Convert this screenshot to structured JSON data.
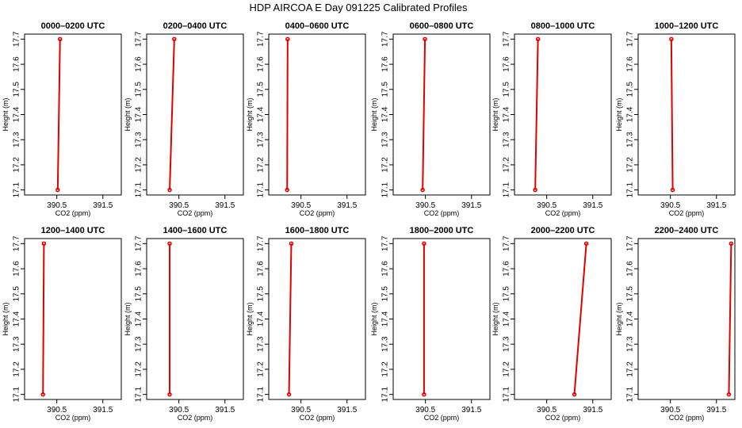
{
  "title": "HDP AIRCOA E  Day 091225  Calibrated Profiles",
  "chart_data": {
    "type": "line",
    "xlabel": "CO2 (ppm)",
    "ylabel": "Height (m)",
    "xlim": [
      389.8,
      391.9
    ],
    "ylim": [
      17.08,
      17.72
    ],
    "x_ticks": [
      390.5,
      391.5
    ],
    "x_tick_labels": [
      "390.5",
      "391.5"
    ],
    "y_ticks": [
      17.1,
      17.2,
      17.3,
      17.4,
      17.5,
      17.6,
      17.7
    ],
    "y_tick_labels": [
      "17.1",
      "17.2",
      "17.3",
      "17.4",
      "17.5",
      "17.6",
      "17.7"
    ],
    "line_color": "#e00000",
    "panels": [
      {
        "title": "0000–0200 UTC",
        "points": [
          {
            "x": 390.52,
            "y": 17.1
          },
          {
            "x": 390.57,
            "y": 17.7
          }
        ]
      },
      {
        "title": "0200–0400 UTC",
        "points": [
          {
            "x": 390.3,
            "y": 17.1
          },
          {
            "x": 390.4,
            "y": 17.7
          }
        ]
      },
      {
        "title": "0400–0600 UTC",
        "points": [
          {
            "x": 390.2,
            "y": 17.1
          },
          {
            "x": 390.21,
            "y": 17.7
          }
        ]
      },
      {
        "title": "0600–0800 UTC",
        "points": [
          {
            "x": 390.44,
            "y": 17.1
          },
          {
            "x": 390.49,
            "y": 17.7
          }
        ]
      },
      {
        "title": "0800–1000 UTC",
        "points": [
          {
            "x": 390.25,
            "y": 17.1
          },
          {
            "x": 390.31,
            "y": 17.7
          }
        ]
      },
      {
        "title": "1000–1200 UTC",
        "points": [
          {
            "x": 390.55,
            "y": 17.1
          },
          {
            "x": 390.52,
            "y": 17.7
          }
        ]
      },
      {
        "title": "1200–1400 UTC",
        "points": [
          {
            "x": 390.2,
            "y": 17.1
          },
          {
            "x": 390.22,
            "y": 17.7
          }
        ]
      },
      {
        "title": "1400–1600 UTC",
        "points": [
          {
            "x": 390.3,
            "y": 17.1
          },
          {
            "x": 390.3,
            "y": 17.7
          }
        ]
      },
      {
        "title": "1600–1800 UTC",
        "points": [
          {
            "x": 390.24,
            "y": 17.1
          },
          {
            "x": 390.29,
            "y": 17.7
          }
        ]
      },
      {
        "title": "1800–2000 UTC",
        "points": [
          {
            "x": 390.47,
            "y": 17.1
          },
          {
            "x": 390.47,
            "y": 17.7
          }
        ]
      },
      {
        "title": "2000–2200 UTC",
        "points": [
          {
            "x": 391.1,
            "y": 17.1
          },
          {
            "x": 391.36,
            "y": 17.7
          }
        ]
      },
      {
        "title": "2200–2400 UTC",
        "points": [
          {
            "x": 391.77,
            "y": 17.1
          },
          {
            "x": 391.82,
            "y": 17.7
          }
        ]
      }
    ]
  }
}
